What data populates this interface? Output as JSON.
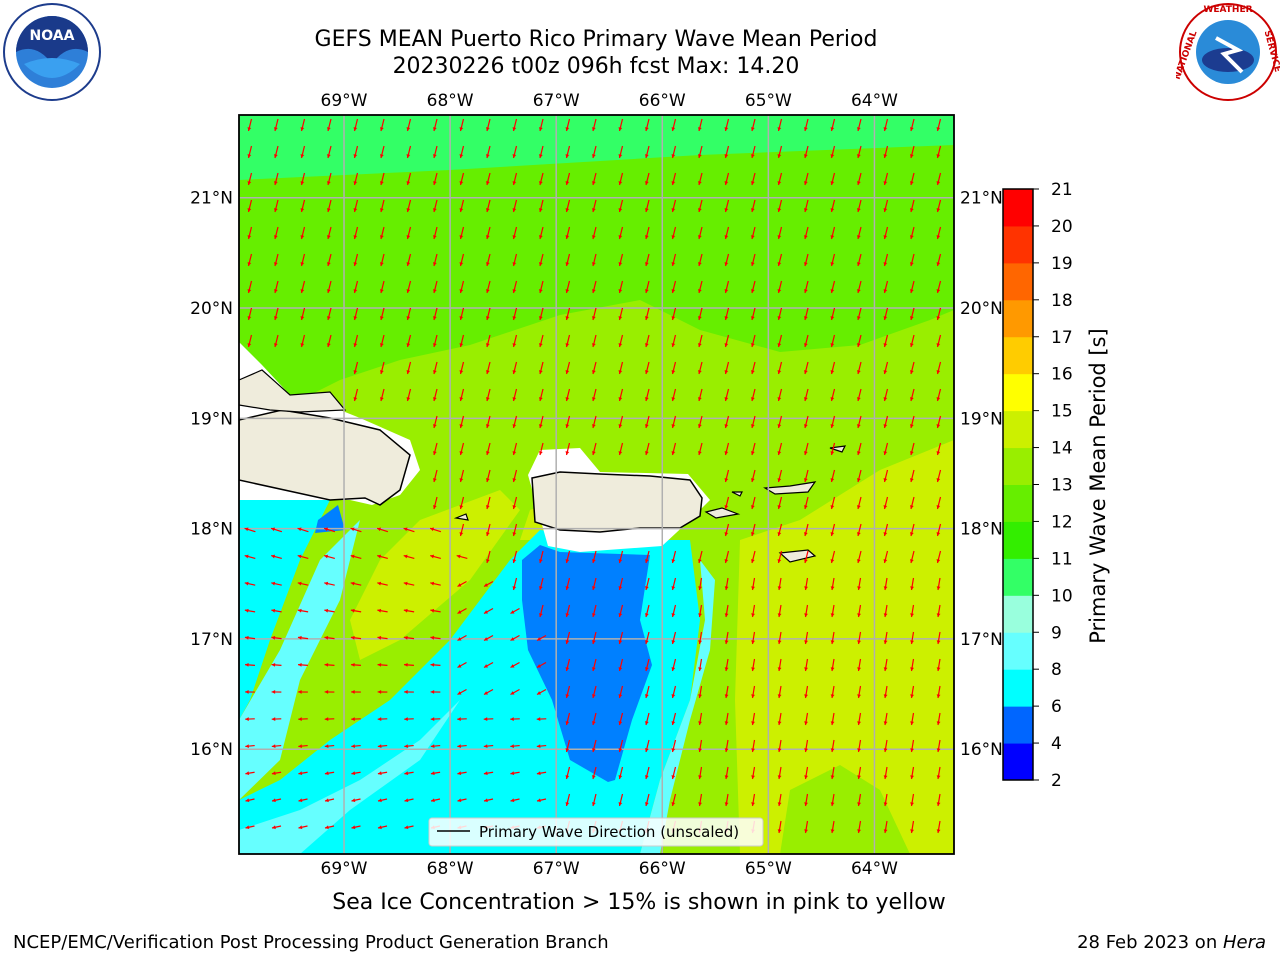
{
  "header": {
    "title_line1": "GEFS MEAN Puerto Rico Primary Wave Mean Period",
    "title_line2": "20230226 t00z 096h fcst   Max: 14.20"
  },
  "logos": {
    "left": {
      "icon": "noaa-logo",
      "text": "NOAA",
      "ring_text": "NATIONAL OCEANIC AND ATMOSPHERIC ADMINISTRATION · U.S. DEPARTMENT OF COMMERCE"
    },
    "right": {
      "icon": "nws-logo",
      "ring_text": "NATIONAL WEATHER SERVICE"
    }
  },
  "map": {
    "lon_ticks": [
      "69°W",
      "68°W",
      "67°W",
      "66°W",
      "65°W",
      "64°W"
    ],
    "lat_ticks": [
      "21°N",
      "20°N",
      "19°N",
      "18°N",
      "17°N",
      "16°N"
    ],
    "lon_values": [
      -69,
      -68,
      -67,
      -66,
      -65,
      -64
    ],
    "lat_values": [
      21,
      20,
      19,
      18,
      17,
      16
    ],
    "lon_range": [
      -69.99,
      -63.25
    ],
    "lat_range": [
      15.05,
      21.75
    ],
    "legend_label": "Primary Wave Direction (unscaled)",
    "arrow_color": "#ff0000",
    "land_color": "#efecdc",
    "grid_color": "#b0b0b0"
  },
  "colorbar": {
    "label": "Primary Wave Mean Period [s]",
    "ticks": [
      "2",
      "4",
      "6",
      "8",
      "9",
      "10",
      "11",
      "12",
      "13",
      "14",
      "15",
      "16",
      "17",
      "18",
      "19",
      "20",
      "21"
    ],
    "colors": [
      "#0000ff",
      "#0066ff",
      "#00ffff",
      "#66ffff",
      "#99ffdd",
      "#33ff66",
      "#33ee00",
      "#66ee00",
      "#99ee00",
      "#ccf000",
      "#ffff00",
      "#ffcc00",
      "#ff9900",
      "#ff6600",
      "#ff3300",
      "#ff0000"
    ]
  },
  "note": "Sea Ice Concentration > 15% is shown in pink to yellow",
  "footer": {
    "left": "NCEP/EMC/Verification Post Processing Product Generation Branch",
    "right_prefix": "28 Feb 2023 on ",
    "right_host": "Hera"
  }
}
